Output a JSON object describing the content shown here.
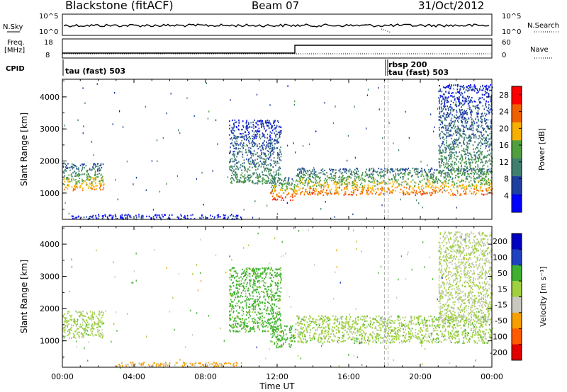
{
  "header": {
    "station": "Blackstone (fitACF)",
    "beam": "Beam 07",
    "date": "31/Oct/2012"
  },
  "top_panel": {
    "left_label": "N.Sky",
    "left_tick_high": "10^5",
    "left_tick_low": "10^0",
    "right_label": "N.Search",
    "right_tick_high": "10^5",
    "right_tick_low": "10^0"
  },
  "freq_panel": {
    "left_label_1": "Freq.",
    "left_label_2": "[MHz]",
    "left_tick_high": "18",
    "left_tick_low": "8",
    "right_label": "Nave",
    "right_tick_high": "60",
    "right_tick_low": "0"
  },
  "cpid_panel": {
    "label": "CPID",
    "entries": [
      "tau (fast) 503",
      "rbsp 200",
      "tau (fast) 503"
    ]
  },
  "colors": {
    "power": [
      "#0000ff",
      "#1f3f9f",
      "#3f7f6f",
      "#4f9f3f",
      "#f7b000",
      "#f06000",
      "#ff0000"
    ],
    "velocity": [
      "#e00000",
      "#ff5a00",
      "#f5a000",
      "#c8c8be",
      "#a0d040",
      "#40b030",
      "#2040c0",
      "#0000c0"
    ]
  },
  "chart_data": [
    {
      "type": "heatmap",
      "title": "",
      "xlabel": "",
      "ylabel": "Slant Range [km]",
      "x_ticks": [
        "00:00",
        "04:00",
        "08:00",
        "12:00",
        "16:00",
        "20:00",
        "00:00"
      ],
      "xlim_hours": [
        0,
        24
      ],
      "y_ticks": [
        1000,
        2000,
        3000,
        4000
      ],
      "ylim": [
        180,
        4550
      ],
      "colorbar": {
        "label": "Power [dB]",
        "ticks": [
          4,
          8,
          12,
          16,
          20,
          24,
          28
        ],
        "range": [
          0,
          30
        ]
      },
      "regions": [
        {
          "t0": 0.0,
          "t1": 2.3,
          "r_low": 1100,
          "r_high": 1950,
          "value": 20
        },
        {
          "t0": 9.3,
          "t1": 12.2,
          "r_low": 1300,
          "r_high": 3300,
          "value": 12
        },
        {
          "t0": 11.6,
          "t1": 13.0,
          "r_low": 800,
          "r_high": 1500,
          "value": 24
        },
        {
          "t0": 13.0,
          "t1": 24.0,
          "r_low": 950,
          "r_high": 1800,
          "value": 22
        },
        {
          "t0": 21.0,
          "t1": 24.0,
          "r_low": 1600,
          "r_high": 4400,
          "value": 12
        },
        {
          "t0": 0.5,
          "t1": 10.0,
          "r_low": 200,
          "r_high": 350,
          "value": 6
        }
      ],
      "vertical_markers_hours": [
        18.0,
        18.2
      ]
    },
    {
      "type": "heatmap",
      "title": "",
      "xlabel": "Time UT",
      "ylabel": "Slant Range [km]",
      "x_ticks": [
        "00:00",
        "04:00",
        "08:00",
        "12:00",
        "16:00",
        "20:00",
        "00:00"
      ],
      "xlim_hours": [
        0,
        24
      ],
      "y_ticks": [
        1000,
        2000,
        3000,
        4000
      ],
      "ylim": [
        180,
        4550
      ],
      "colorbar": {
        "label": "Velocity [m s⁻¹]",
        "ticks": [
          200,
          100,
          50,
          15,
          -15,
          -50,
          -100,
          -200
        ]
      },
      "regions": [
        {
          "t0": 0.0,
          "t1": 2.3,
          "r_low": 1100,
          "r_high": 1950,
          "value": 0
        },
        {
          "t0": 9.3,
          "t1": 12.2,
          "r_low": 1300,
          "r_high": 3300,
          "value": 30
        },
        {
          "t0": 11.6,
          "t1": 13.0,
          "r_low": 800,
          "r_high": 1500,
          "value": 30
        },
        {
          "t0": 13.0,
          "t1": 24.0,
          "r_low": 950,
          "r_high": 1800,
          "value": 0
        },
        {
          "t0": 21.0,
          "t1": 24.0,
          "r_low": 1600,
          "r_high": 4400,
          "value": -10
        },
        {
          "t0": 3.0,
          "t1": 10.0,
          "r_low": 200,
          "r_high": 350,
          "value": -60
        }
      ],
      "vertical_markers_hours": [
        18.0,
        18.2
      ]
    }
  ]
}
